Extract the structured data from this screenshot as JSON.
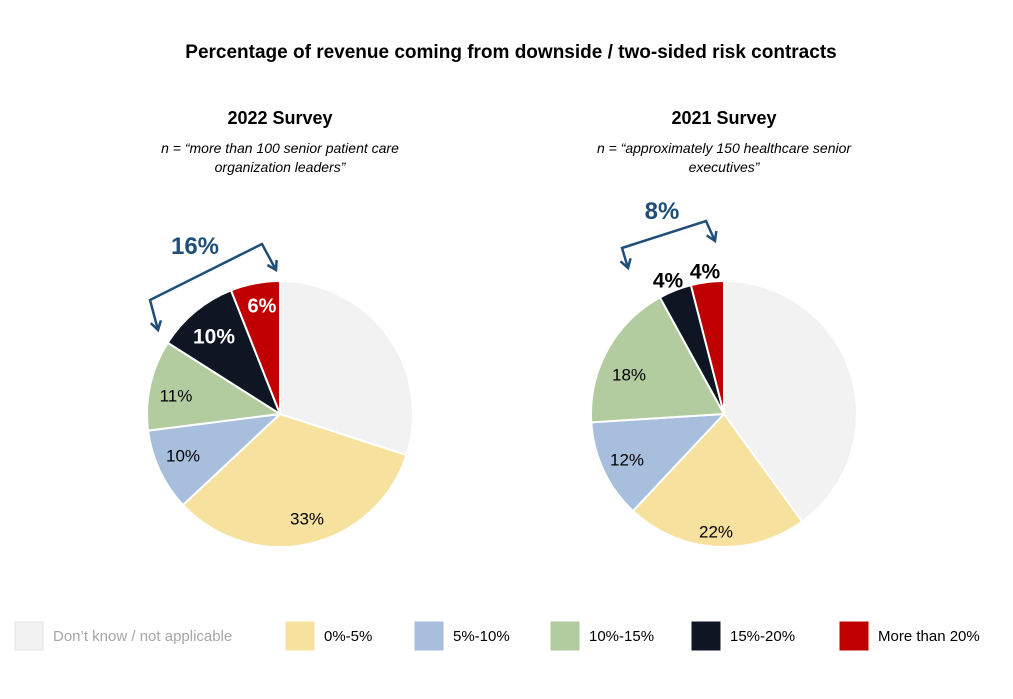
{
  "chart_data": {
    "type": "pie",
    "title": "Percentage of revenue coming from downside / two-sided risk contracts",
    "legend": {
      "placement": "bottom",
      "items": [
        {
          "label": "Don’t know / not applicable",
          "color": "#f2f2f2",
          "text_color": "#a6a6a6"
        },
        {
          "label": "0%-5%",
          "color": "#f7e19e",
          "text_color": "#000000"
        },
        {
          "label": "5%-10%",
          "color": "#a7bfdc",
          "text_color": "#000000"
        },
        {
          "label": "10%-15%",
          "color": "#b2cca0",
          "text_color": "#000000"
        },
        {
          "label": "15%-20%",
          "color": "#0e1624",
          "text_color": "#000000"
        },
        {
          "label": "More than 20%",
          "color": "#c00000",
          "text_color": "#000000"
        }
      ]
    },
    "pies": [
      {
        "id": "2022",
        "title": "2022 Survey",
        "subtitle_lines": [
          "n = “more than 100 senior patient care",
          "organization leaders”"
        ],
        "bracket_label": "16%",
        "bracket_color": "#1f4e79",
        "slices": [
          {
            "category": "Don’t know / not applicable",
            "value": 30,
            "label": "",
            "color": "#f2f2f2"
          },
          {
            "category": "0%-5%",
            "value": 33,
            "label": "33%",
            "color": "#f7e19e"
          },
          {
            "category": "5%-10%",
            "value": 10,
            "label": "10%",
            "color": "#a7bfdc"
          },
          {
            "category": "10%-15%",
            "value": 11,
            "label": "11%",
            "color": "#b2cca0"
          },
          {
            "category": "15%-20%",
            "value": 10,
            "label": "10%",
            "color": "#0e1624"
          },
          {
            "category": "More than 20%",
            "value": 6,
            "label": "6%",
            "color": "#c00000"
          }
        ]
      },
      {
        "id": "2021",
        "title": "2021 Survey",
        "subtitle_lines": [
          "n = “approximately 150 healthcare senior",
          "executives”"
        ],
        "bracket_label": "8%",
        "bracket_color": "#1f4e79",
        "slices": [
          {
            "category": "Don’t know / not applicable",
            "value": 40,
            "label": "",
            "color": "#f2f2f2"
          },
          {
            "category": "0%-5%",
            "value": 22,
            "label": "22%",
            "color": "#f7e19e"
          },
          {
            "category": "5%-10%",
            "value": 12,
            "label": "12%",
            "color": "#a7bfdc"
          },
          {
            "category": "10%-15%",
            "value": 18,
            "label": "18%",
            "color": "#b2cca0"
          },
          {
            "category": "15%-20%",
            "value": 4,
            "label": "4%",
            "color": "#0e1624"
          },
          {
            "category": "More than 20%",
            "value": 4,
            "label": "4%",
            "color": "#c00000"
          }
        ]
      }
    ]
  }
}
